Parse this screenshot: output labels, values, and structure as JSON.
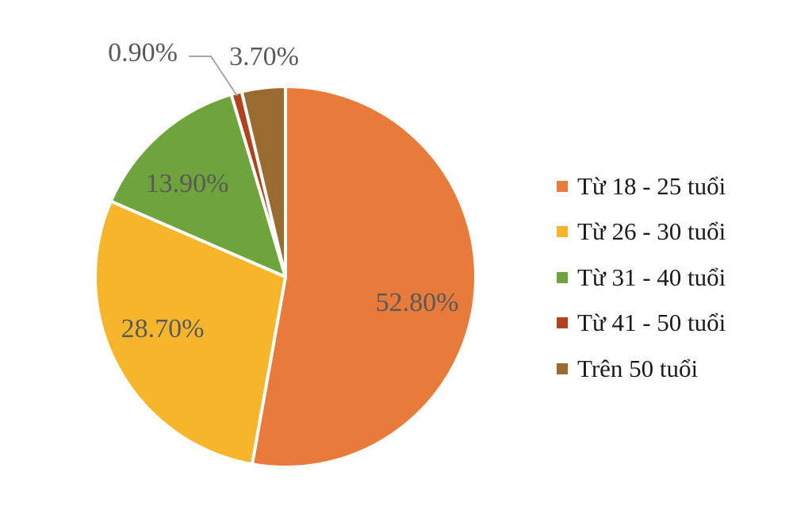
{
  "chart_data": {
    "type": "pie",
    "slices": [
      {
        "label": "Từ 18 - 25 tuổi",
        "value": 52.8,
        "value_label": "52.80%",
        "color": "#E87A3A"
      },
      {
        "label": "Từ 26 - 30 tuổi",
        "value": 28.7,
        "value_label": "28.70%",
        "color": "#F7B52B"
      },
      {
        "label": "Từ 31 - 40 tuổi",
        "value": 13.9,
        "value_label": "13.90%",
        "color": "#6FA43C"
      },
      {
        "label": "Từ 41 - 50 tuổi",
        "value": 0.9,
        "value_label": "0.90%",
        "color": "#B0431E"
      },
      {
        "label": "Trên 50 tuổi",
        "value": 3.7,
        "value_label": "3.70%",
        "color": "#9A6B2E"
      }
    ],
    "start_angle": "12 o'clock",
    "direction": "clockwise",
    "legend_position": "right",
    "title": ""
  }
}
